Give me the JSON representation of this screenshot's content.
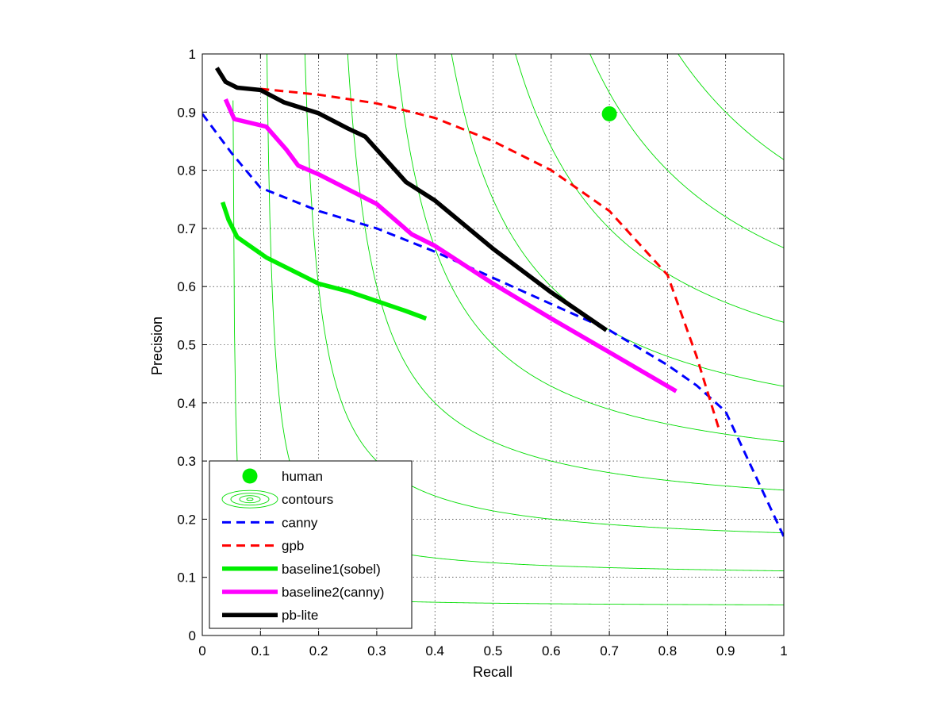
{
  "chart_data": {
    "type": "line",
    "title": "",
    "xlabel": "Recall",
    "ylabel": "Precision",
    "xlim": [
      0,
      1
    ],
    "ylim": [
      0,
      1
    ],
    "xticks": [
      0,
      0.1,
      0.2,
      0.3,
      0.4,
      0.5,
      0.6,
      0.7,
      0.8,
      0.9,
      1
    ],
    "xtick_labels": [
      "0",
      "0.1",
      "0.2",
      "0.3",
      "0.4",
      "0.5",
      "0.6",
      "0.7",
      "0.8",
      "0.9",
      "1"
    ],
    "yticks": [
      0,
      0.1,
      0.2,
      0.3,
      0.4,
      0.5,
      0.6,
      0.7,
      0.8,
      0.9,
      1
    ],
    "ytick_labels": [
      "0",
      "0.1",
      "0.2",
      "0.3",
      "0.4",
      "0.5",
      "0.6",
      "0.7",
      "0.8",
      "0.9",
      "1"
    ],
    "grid": true,
    "legend_position": "bottom-left",
    "contours": {
      "color": "#00dd00",
      "f_values": [
        0.1,
        0.2,
        0.3,
        0.4,
        0.5,
        0.6,
        0.7,
        0.8,
        0.9
      ]
    },
    "point": {
      "name": "human",
      "x": 0.7,
      "y": 0.897,
      "color": "#00ee00"
    },
    "series": [
      {
        "name": "canny",
        "color": "#0000ff",
        "style": "dashed",
        "x": [
          0.0,
          0.05,
          0.1,
          0.2,
          0.3,
          0.4,
          0.5,
          0.6,
          0.7,
          0.8,
          0.85,
          0.9,
          1.0
        ],
        "y": [
          0.897,
          0.83,
          0.77,
          0.73,
          0.7,
          0.66,
          0.615,
          0.57,
          0.525,
          0.465,
          0.43,
          0.385,
          0.17
        ]
      },
      {
        "name": "gpb",
        "color": "#ff0000",
        "style": "dashed",
        "x": [
          0.1,
          0.2,
          0.3,
          0.4,
          0.5,
          0.6,
          0.7,
          0.8,
          0.85,
          0.89
        ],
        "y": [
          0.94,
          0.93,
          0.915,
          0.89,
          0.85,
          0.8,
          0.73,
          0.62,
          0.48,
          0.35
        ]
      },
      {
        "name": "baseline1(sobel)",
        "color": "#00ee00",
        "style": "solid",
        "x": [
          0.035,
          0.045,
          0.06,
          0.11,
          0.15,
          0.2,
          0.25,
          0.3,
          0.35,
          0.385
        ],
        "y": [
          0.745,
          0.715,
          0.685,
          0.65,
          0.63,
          0.605,
          0.592,
          0.575,
          0.558,
          0.545
        ]
      },
      {
        "name": "baseline2(canny)",
        "color": "#ff00ff",
        "style": "solid",
        "x": [
          0.04,
          0.055,
          0.11,
          0.145,
          0.165,
          0.2,
          0.3,
          0.36,
          0.4,
          0.5,
          0.6,
          0.7,
          0.815
        ],
        "y": [
          0.922,
          0.888,
          0.875,
          0.835,
          0.808,
          0.793,
          0.742,
          0.69,
          0.67,
          0.605,
          0.545,
          0.487,
          0.42
        ]
      },
      {
        "name": "pb-lite",
        "color": "#000000",
        "style": "solid",
        "x": [
          0.025,
          0.04,
          0.06,
          0.1,
          0.14,
          0.2,
          0.25,
          0.28,
          0.35,
          0.4,
          0.5,
          0.6,
          0.695
        ],
        "y": [
          0.976,
          0.952,
          0.942,
          0.938,
          0.917,
          0.898,
          0.872,
          0.858,
          0.78,
          0.748,
          0.665,
          0.59,
          0.525
        ]
      }
    ],
    "legend": [
      {
        "label": "human",
        "kind": "point",
        "color": "#00ee00"
      },
      {
        "label": "contours",
        "kind": "contours",
        "color": "#00dd00"
      },
      {
        "label": "canny",
        "kind": "dashed",
        "color": "#0000ff"
      },
      {
        "label": "gpb",
        "kind": "dashed",
        "color": "#ff0000"
      },
      {
        "label": "baseline1(sobel)",
        "kind": "solid",
        "color": "#00ee00"
      },
      {
        "label": "baseline2(canny)",
        "kind": "solid",
        "color": "#ff00ff"
      },
      {
        "label": "pb-lite",
        "kind": "solid",
        "color": "#000000"
      }
    ]
  }
}
